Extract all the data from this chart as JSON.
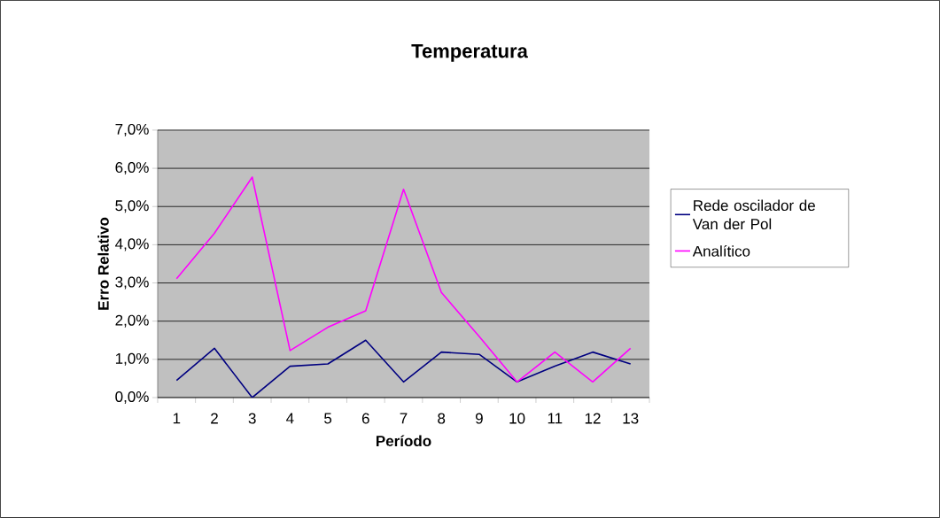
{
  "chart_data": {
    "type": "line",
    "title": "Temperatura",
    "xlabel": "Período",
    "ylabel": "Erro Relativo",
    "categories": [
      "1",
      "2",
      "3",
      "4",
      "5",
      "6",
      "7",
      "8",
      "9",
      "10",
      "11",
      "12",
      "13"
    ],
    "series": [
      {
        "name": "Rede oscilador de Van der Pol",
        "color": "#000080",
        "values": [
          0.45,
          1.29,
          0.0,
          0.82,
          0.88,
          1.5,
          0.41,
          1.19,
          1.13,
          0.41,
          0.82,
          1.19,
          0.88
        ]
      },
      {
        "name": "Analítico",
        "color": "#ff00ff",
        "values": [
          3.11,
          4.3,
          5.77,
          1.23,
          1.84,
          2.27,
          5.45,
          2.75,
          1.6,
          0.41,
          1.19,
          0.41,
          1.29
        ]
      }
    ],
    "ylim": [
      0,
      7
    ],
    "yticks": [
      {
        "value": 0,
        "label": "0,0%"
      },
      {
        "value": 1,
        "label": "1,0%"
      },
      {
        "value": 2,
        "label": "2,0%"
      },
      {
        "value": 3,
        "label": "3,0%"
      },
      {
        "value": 4,
        "label": "4,0%"
      },
      {
        "value": 5,
        "label": "5,0%"
      },
      {
        "value": 6,
        "label": "6,0%"
      },
      {
        "value": 7,
        "label": "7,0%"
      }
    ],
    "grid": "y",
    "legend": "right",
    "marker": "none",
    "line_style": "solid"
  }
}
